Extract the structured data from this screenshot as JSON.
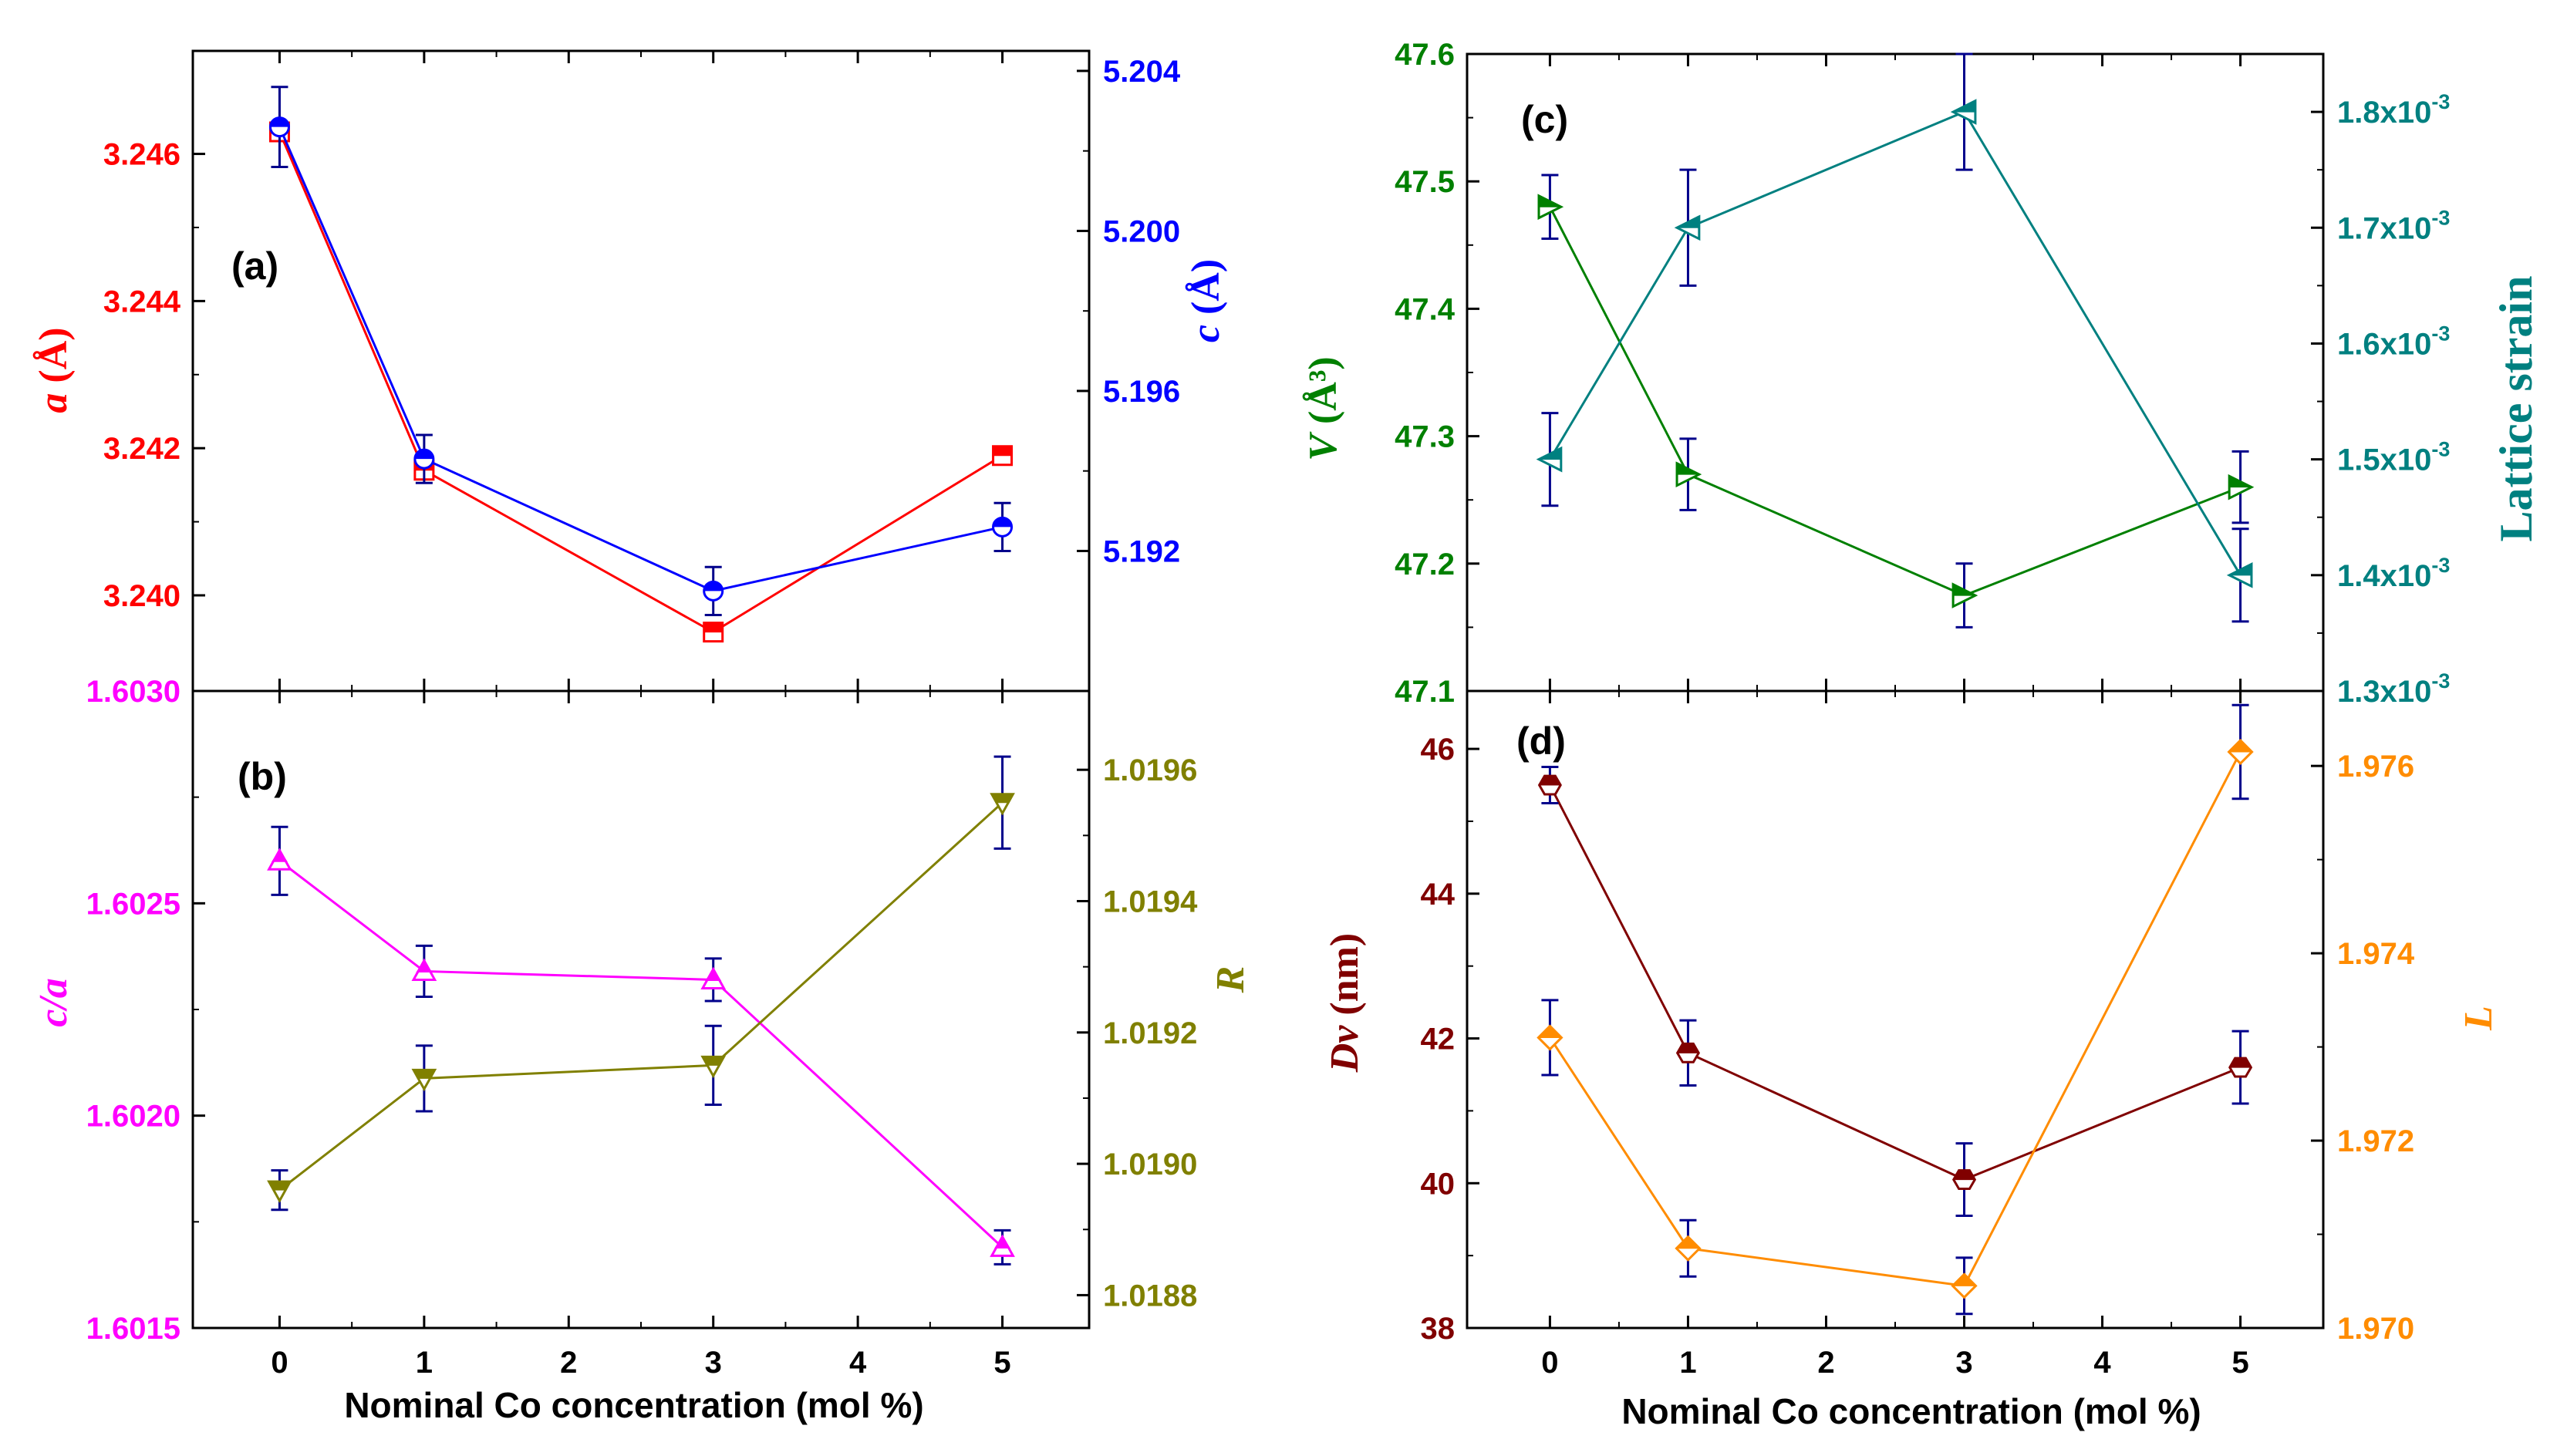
{
  "figure": {
    "shared_xlabel": "Nominal Co concentration (mol %)"
  },
  "chart_data": [
    {
      "id": "a",
      "panel_label": "(a)",
      "type": "line",
      "x": [
        0,
        1,
        3,
        5
      ],
      "xticks": [
        "0",
        "1",
        "2",
        "3",
        "4",
        "5"
      ],
      "xlim": [
        -0.6,
        5.6
      ],
      "left_axis": {
        "label_italic": "a",
        "label_unit": " (Å)",
        "color": "#ff0000",
        "ylim": [
          3.2387,
          3.2474
        ],
        "ticks": [
          "3.240",
          "3.242",
          "3.244",
          "3.246"
        ]
      },
      "right_axis": {
        "label_italic": "c",
        "label_unit": " (Å)",
        "color": "#0000ff",
        "ylim": [
          5.1885,
          5.2045
        ],
        "ticks": [
          "5.192",
          "5.196",
          "5.200",
          "5.204"
        ]
      },
      "series": [
        {
          "axis": "left",
          "color": "#ff0000",
          "marker": "square-half",
          "values": [
            3.2463,
            3.2417,
            3.2395,
            3.2419
          ],
          "errors": [
            0.0001,
            0.0001,
            0.0001,
            0.0001
          ]
        },
        {
          "axis": "right",
          "color": "#0000ff",
          "marker": "circle-half",
          "values": [
            5.2026,
            5.1943,
            5.191,
            5.1926
          ],
          "errors": [
            0.001,
            0.0006,
            0.0006,
            0.0006
          ]
        }
      ]
    },
    {
      "id": "b",
      "panel_label": "(b)",
      "type": "line",
      "x": [
        0,
        1,
        3,
        5
      ],
      "xticks": [
        "0",
        "1",
        "2",
        "3",
        "4",
        "5"
      ],
      "xlim": [
        -0.6,
        5.6
      ],
      "left_axis": {
        "label_italic": "c/a",
        "label_unit": "",
        "color": "#ff00ff",
        "ylim": [
          1.6015,
          1.603
        ],
        "ticks": [
          "1.6015",
          "1.6020",
          "1.6025",
          "1.6030"
        ]
      },
      "right_axis": {
        "label_italic": "R",
        "label_unit": "",
        "color": "#808000",
        "ylim": [
          1.01875,
          1.01972
        ],
        "ticks": [
          "1.0188",
          "1.0190",
          "1.0192",
          "1.0194",
          "1.0196"
        ]
      },
      "series": [
        {
          "axis": "left",
          "color": "#ff00ff",
          "marker": "triangle-up-half",
          "values": [
            1.6026,
            1.60234,
            1.60232,
            1.60169
          ],
          "errors": [
            8e-05,
            6e-05,
            5e-05,
            4e-05
          ]
        },
        {
          "axis": "right",
          "color": "#808000",
          "marker": "triangle-down-half",
          "values": [
            1.01896,
            1.01913,
            1.01915,
            1.01955
          ],
          "errors": [
            3e-05,
            5e-05,
            6e-05,
            7e-05
          ]
        }
      ]
    },
    {
      "id": "c",
      "panel_label": "(c)",
      "type": "line",
      "x": [
        0,
        1,
        3,
        5
      ],
      "xticks": [
        "0",
        "1",
        "2",
        "3",
        "4",
        "5"
      ],
      "xlim": [
        -0.6,
        5.6
      ],
      "left_axis": {
        "label_italic": "V",
        "label_unit": " (Å³)",
        "color": "#008000",
        "ylim": [
          47.1,
          47.6
        ],
        "ticks": [
          "47.1",
          "47.2",
          "47.3",
          "47.4",
          "47.5",
          "47.6"
        ]
      },
      "right_axis": {
        "label_italic": "",
        "label_unit": "Lattice strain",
        "color": "#008080",
        "ylim": [
          0.0013,
          0.00185
        ],
        "ticks": [
          "1.3x10",
          "1.4x10",
          "1.5x10",
          "1.6x10",
          "1.7x10",
          "1.8x10"
        ],
        "tick_exponent": "-3"
      },
      "series": [
        {
          "axis": "left",
          "color": "#008000",
          "marker": "triangle-right-half",
          "values": [
            47.48,
            47.27,
            47.175,
            47.26
          ],
          "errors": [
            0.025,
            0.028,
            0.025,
            0.028
          ]
        },
        {
          "axis": "right",
          "color": "#008080",
          "marker": "triangle-left-half",
          "values": [
            0.0015,
            0.0017,
            0.0018,
            0.0014
          ],
          "errors": [
            4e-05,
            5e-05,
            5e-05,
            4e-05
          ]
        }
      ]
    },
    {
      "id": "d",
      "panel_label": "(d)",
      "type": "line",
      "x": [
        0,
        1,
        3,
        5
      ],
      "xticks": [
        "0",
        "1",
        "2",
        "3",
        "4",
        "5"
      ],
      "xlim": [
        -0.6,
        5.6
      ],
      "left_axis": {
        "label_italic": "Dv",
        "label_unit": " (nm)",
        "color": "#800000",
        "ylim": [
          38,
          46.8
        ],
        "ticks": [
          "38",
          "40",
          "42",
          "44",
          "46"
        ]
      },
      "right_axis": {
        "label_italic": "L",
        "label_unit": "",
        "color": "#ff8c00",
        "ylim": [
          1.97,
          1.9768
        ],
        "ticks": [
          "1.970",
          "1.972",
          "1.974",
          "1.976"
        ]
      },
      "series": [
        {
          "axis": "left",
          "color": "#800000",
          "marker": "hexagon-half",
          "values": [
            45.5,
            41.8,
            40.05,
            41.6
          ],
          "errors": [
            0.25,
            0.45,
            0.5,
            0.5
          ]
        },
        {
          "axis": "right",
          "color": "#ff8c00",
          "marker": "diamond-half",
          "values": [
            1.9731,
            1.97085,
            1.97045,
            1.97615
          ],
          "errors": [
            0.0004,
            0.0003,
            0.0003,
            0.0005
          ]
        }
      ]
    }
  ]
}
